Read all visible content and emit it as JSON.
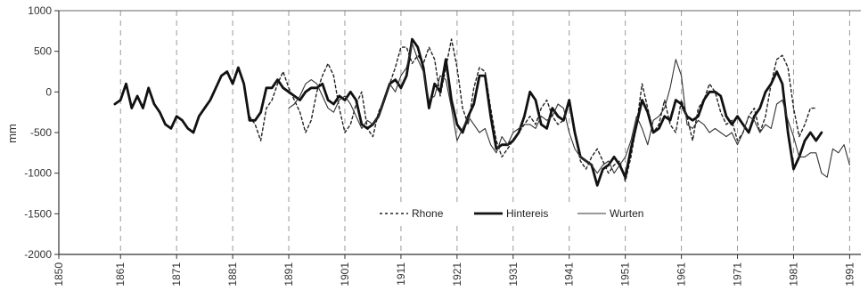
{
  "chart_data": {
    "type": "line",
    "title": "",
    "xlabel": "",
    "ylabel": "mm",
    "xlim": [
      1850,
      1993
    ],
    "ylim": [
      -2000,
      1000
    ],
    "x_ticks": [
      "1850",
      "1861",
      "1871",
      "1881",
      "1891",
      "1901",
      "1911",
      "1921",
      "1931",
      "1941",
      "1951",
      "1961",
      "1971",
      "1981",
      "1991"
    ],
    "y_ticks": [
      "1000",
      "500",
      "0",
      "-500",
      "-1000",
      "-1500",
      "-2000"
    ],
    "x_tick_values": [
      1850,
      1861,
      1871,
      1881,
      1891,
      1901,
      1911,
      1921,
      1931,
      1941,
      1951,
      1961,
      1971,
      1981,
      1991
    ],
    "y_tick_values": [
      1000,
      500,
      0,
      -500,
      -1000,
      -1500,
      -2000
    ],
    "grid": "vertical dashed",
    "legend": {
      "placement": "bottom-center"
    },
    "series": [
      {
        "name": "Rhone",
        "style": "dotted",
        "color": "#222222",
        "x": [
          1884,
          1885,
          1886,
          1887,
          1888,
          1889,
          1890,
          1891,
          1892,
          1893,
          1894,
          1895,
          1896,
          1897,
          1898,
          1899,
          1900,
          1901,
          1902,
          1903,
          1904,
          1905,
          1906,
          1907,
          1908,
          1909,
          1910,
          1911,
          1912,
          1913,
          1914,
          1915,
          1916,
          1917,
          1918,
          1919,
          1920,
          1921,
          1922,
          1923,
          1924,
          1925,
          1926,
          1927,
          1928,
          1929,
          1930,
          1931,
          1932,
          1933,
          1934,
          1935,
          1936,
          1937,
          1938,
          1939,
          1940,
          1941,
          1942,
          1943,
          1944,
          1945,
          1946,
          1947,
          1948,
          1949,
          1950,
          1951,
          1952,
          1953,
          1954,
          1955,
          1956,
          1957,
          1958,
          1959,
          1960,
          1961,
          1962,
          1963,
          1964,
          1965,
          1966,
          1967,
          1968,
          1969,
          1970,
          1971,
          1972,
          1973,
          1974,
          1975,
          1976,
          1977,
          1978,
          1979,
          1980,
          1981,
          1982,
          1983,
          1984,
          1985
        ],
        "y": [
          -300,
          -400,
          -600,
          -200,
          -100,
          100,
          250,
          50,
          -100,
          -250,
          -500,
          -350,
          0,
          200,
          350,
          200,
          -200,
          -500,
          -400,
          -150,
          0,
          -450,
          -550,
          -250,
          -100,
          100,
          300,
          550,
          550,
          350,
          450,
          350,
          550,
          400,
          -50,
          300,
          650,
          300,
          -200,
          -400,
          50,
          300,
          250,
          -200,
          -600,
          -800,
          -700,
          -600,
          -500,
          -400,
          -300,
          -400,
          -200,
          -100,
          -300,
          -400,
          -350,
          -100,
          -500,
          -850,
          -950,
          -800,
          -700,
          -850,
          -1000,
          -900,
          -850,
          -1100,
          -800,
          -400,
          100,
          -200,
          -500,
          -400,
          -100,
          -400,
          -500,
          -100,
          -300,
          -600,
          -200,
          -100,
          100,
          0,
          -250,
          -400,
          -350,
          -600,
          -500,
          -300,
          -200,
          -500,
          -300,
          100,
          400,
          450,
          300,
          -200,
          -550,
          -400,
          -200,
          -200
        ]
      },
      {
        "name": "Hintereis",
        "style": "thick",
        "color": "#111111",
        "x": [
          1860,
          1861,
          1862,
          1863,
          1864,
          1865,
          1866,
          1867,
          1868,
          1869,
          1870,
          1871,
          1872,
          1873,
          1874,
          1875,
          1876,
          1877,
          1878,
          1879,
          1880,
          1881,
          1882,
          1883,
          1884,
          1885,
          1886,
          1887,
          1888,
          1889,
          1890,
          1891,
          1892,
          1893,
          1894,
          1895,
          1896,
          1897,
          1898,
          1899,
          1900,
          1901,
          1902,
          1903,
          1904,
          1905,
          1906,
          1907,
          1908,
          1909,
          1910,
          1911,
          1912,
          1913,
          1914,
          1915,
          1916,
          1917,
          1918,
          1919,
          1920,
          1921,
          1922,
          1923,
          1924,
          1925,
          1926,
          1927,
          1928,
          1929,
          1930,
          1931,
          1932,
          1933,
          1934,
          1935,
          1936,
          1937,
          1938,
          1939,
          1940,
          1941,
          1942,
          1943,
          1944,
          1945,
          1946,
          1947,
          1948,
          1949,
          1950,
          1951,
          1952,
          1953,
          1954,
          1955,
          1956,
          1957,
          1958,
          1959,
          1960,
          1961,
          1962,
          1963,
          1964,
          1965,
          1966,
          1967,
          1968,
          1969,
          1970,
          1971,
          1972,
          1973,
          1974,
          1975,
          1976,
          1977,
          1978,
          1979,
          1980,
          1981,
          1982,
          1983,
          1984,
          1985,
          1986
        ],
        "y": [
          -150,
          -100,
          100,
          -200,
          -50,
          -200,
          50,
          -150,
          -250,
          -400,
          -450,
          -300,
          -350,
          -450,
          -500,
          -300,
          -200,
          -100,
          50,
          200,
          250,
          100,
          300,
          100,
          -350,
          -350,
          -250,
          50,
          50,
          150,
          50,
          0,
          -50,
          -100,
          0,
          50,
          50,
          100,
          -100,
          -150,
          -50,
          -100,
          0,
          -100,
          -400,
          -450,
          -400,
          -300,
          -100,
          100,
          150,
          50,
          200,
          650,
          550,
          300,
          -200,
          100,
          0,
          400,
          -100,
          -400,
          -500,
          -300,
          -150,
          200,
          200,
          -300,
          -700,
          -650,
          -650,
          -600,
          -500,
          -300,
          0,
          -100,
          -400,
          -450,
          -200,
          -300,
          -350,
          -100,
          -500,
          -800,
          -850,
          -900,
          -1150,
          -950,
          -900,
          -800,
          -900,
          -1050,
          -700,
          -400,
          -100,
          -250,
          -500,
          -450,
          -300,
          -350,
          -100,
          -150,
          -300,
          -350,
          -300,
          -100,
          0,
          0,
          -50,
          -300,
          -400,
          -300,
          -400,
          -500,
          -300,
          -200,
          0,
          100,
          250,
          100,
          -500,
          -950,
          -800,
          -600,
          -500,
          -600,
          -500
        ]
      },
      {
        "name": "Wurten",
        "style": "thin",
        "color": "#333333",
        "x": [
          1891,
          1892,
          1893,
          1894,
          1895,
          1896,
          1897,
          1898,
          1899,
          1900,
          1901,
          1902,
          1903,
          1904,
          1905,
          1906,
          1907,
          1908,
          1909,
          1910,
          1911,
          1912,
          1913,
          1914,
          1915,
          1916,
          1917,
          1918,
          1919,
          1920,
          1921,
          1922,
          1923,
          1924,
          1925,
          1926,
          1927,
          1928,
          1929,
          1930,
          1931,
          1932,
          1933,
          1934,
          1935,
          1936,
          1937,
          1938,
          1939,
          1940,
          1941,
          1942,
          1943,
          1944,
          1945,
          1946,
          1947,
          1948,
          1949,
          1950,
          1951,
          1952,
          1953,
          1954,
          1955,
          1956,
          1957,
          1958,
          1959,
          1960,
          1961,
          1962,
          1963,
          1964,
          1965,
          1966,
          1967,
          1968,
          1969,
          1970,
          1971,
          1972,
          1973,
          1974,
          1975,
          1976,
          1977,
          1978,
          1979,
          1980,
          1981,
          1982,
          1983,
          1984,
          1985,
          1986,
          1987,
          1988,
          1989,
          1990,
          1991
        ],
        "y": [
          -200,
          -150,
          -50,
          100,
          150,
          100,
          -50,
          -200,
          -250,
          -100,
          -50,
          -150,
          -300,
          -450,
          -350,
          -400,
          -300,
          -100,
          100,
          0,
          200,
          300,
          600,
          400,
          250,
          -100,
          -50,
          200,
          150,
          -200,
          -600,
          -450,
          -300,
          -400,
          -500,
          -450,
          -650,
          -750,
          -550,
          -650,
          -500,
          -450,
          -400,
          -400,
          -450,
          -300,
          -350,
          -300,
          -150,
          -200,
          -500,
          -700,
          -800,
          -850,
          -900,
          -1000,
          -900,
          -850,
          -1000,
          -900,
          -800,
          -600,
          -300,
          -450,
          -650,
          -350,
          -300,
          -200,
          50,
          400,
          200,
          -400,
          -450,
          -350,
          -400,
          -500,
          -450,
          -500,
          -550,
          -500,
          -650,
          -500,
          -300,
          -350,
          -500,
          -400,
          -450,
          -150,
          -100,
          -350,
          -550,
          -800,
          -800,
          -750,
          -750,
          -1000,
          -1050,
          -700,
          -750,
          -650,
          -900
        ]
      }
    ]
  }
}
